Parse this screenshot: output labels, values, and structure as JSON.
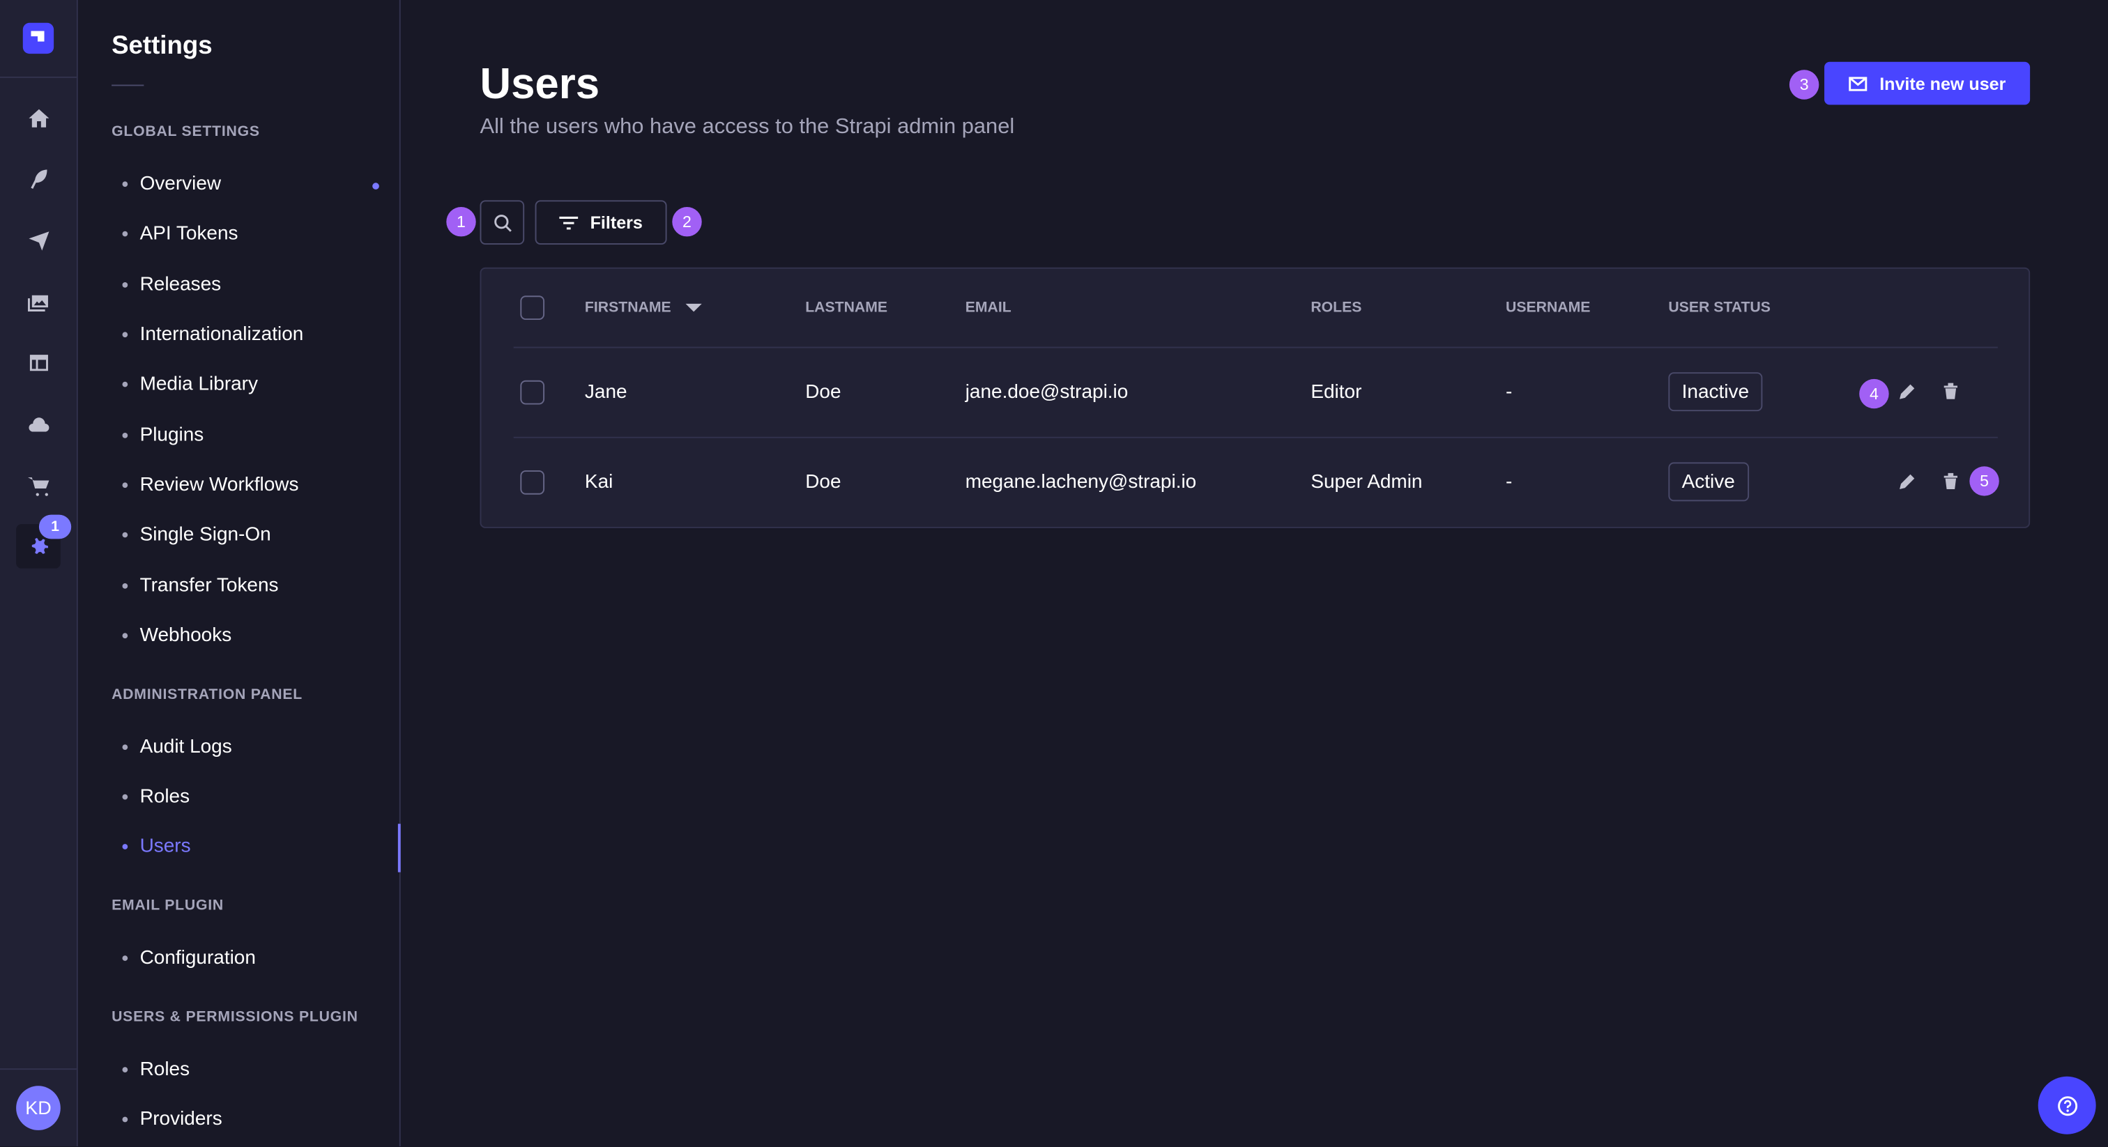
{
  "nav": {
    "notification_count": "1",
    "avatar_initials": "KD"
  },
  "settings": {
    "title": "Settings",
    "sections": [
      {
        "label": "GLOBAL SETTINGS",
        "items": [
          "Overview",
          "API Tokens",
          "Releases",
          "Internationalization",
          "Media Library",
          "Plugins",
          "Review Workflows",
          "Single Sign-On",
          "Transfer Tokens",
          "Webhooks"
        ]
      },
      {
        "label": "ADMINISTRATION PANEL",
        "items": [
          "Audit Logs",
          "Roles",
          "Users"
        ]
      },
      {
        "label": "EMAIL PLUGIN",
        "items": [
          "Configuration"
        ]
      },
      {
        "label": "USERS & PERMISSIONS PLUGIN",
        "items": [
          "Roles",
          "Providers"
        ]
      }
    ],
    "active_item": "Users"
  },
  "page": {
    "title": "Users",
    "subtitle": "All the users who have access to the Strapi admin panel",
    "invite_label": "Invite new user",
    "filters_label": "Filters"
  },
  "markers": [
    "1",
    "2",
    "3",
    "4",
    "5"
  ],
  "table": {
    "headers": [
      "FIRSTNAME",
      "LASTNAME",
      "EMAIL",
      "ROLES",
      "USERNAME",
      "USER STATUS"
    ],
    "rows": [
      {
        "firstname": "Jane",
        "lastname": "Doe",
        "email": "jane.doe@strapi.io",
        "roles": "Editor",
        "username": "-",
        "status": "Inactive"
      },
      {
        "firstname": "Kai",
        "lastname": "Doe",
        "email": "megane.lacheny@strapi.io",
        "roles": "Super Admin",
        "username": "-",
        "status": "Active"
      }
    ]
  },
  "colors": {
    "accent": "#4945ff",
    "marker": "#a160f5",
    "active_link": "#7b79ff",
    "background": "#181826",
    "surface": "#212134"
  }
}
